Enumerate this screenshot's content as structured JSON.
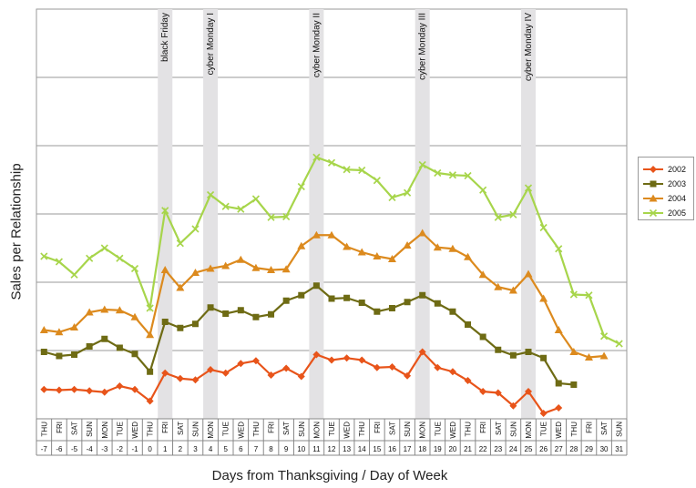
{
  "chart_data": {
    "type": "line",
    "title": "",
    "xlabel": "Days from Thanksgiving / Day of Week",
    "ylabel": "Sales per Relationship",
    "grid": true,
    "legend_position": "right",
    "x_days": [
      -7,
      -6,
      -5,
      -4,
      -3,
      -2,
      -1,
      0,
      1,
      2,
      3,
      4,
      5,
      6,
      7,
      8,
      9,
      10,
      11,
      12,
      13,
      14,
      15,
      16,
      17,
      18,
      19,
      20,
      21,
      22,
      23,
      24,
      25,
      26,
      27,
      28,
      29,
      30,
      31
    ],
    "x_day_labels": [
      "-7",
      "-6",
      "-5",
      "-4",
      "-3",
      "-2",
      "-1",
      "0",
      "1",
      "2",
      "3",
      "4",
      "5",
      "6",
      "7",
      "8",
      "9",
      "10",
      "11",
      "12",
      "13",
      "14",
      "15",
      "16",
      "17",
      "18",
      "19",
      "20",
      "21",
      "22",
      "23",
      "24",
      "25",
      "26",
      "27",
      "28",
      "29",
      "30",
      "31"
    ],
    "x_weekday_labels": [
      "THU",
      "FRI",
      "SAT",
      "SUN",
      "MON",
      "TUE",
      "WED",
      "THU",
      "FRI",
      "SAT",
      "SUN",
      "MON",
      "TUE",
      "WED",
      "THU",
      "FRI",
      "SAT",
      "SUN",
      "MON",
      "TUE",
      "WED",
      "THU",
      "FRI",
      "SAT",
      "SUN",
      "MON",
      "TUE",
      "WED",
      "THU",
      "FRI",
      "SAT",
      "SUN",
      "MON",
      "TUE",
      "WED",
      "THU",
      "FRI",
      "SAT",
      "SUN"
    ],
    "y_gridlines": 6,
    "ylim": [
      0,
      6
    ],
    "highlights": [
      {
        "day": 1,
        "label": "black Friday"
      },
      {
        "day": 4,
        "label": "cyber Monday I"
      },
      {
        "day": 11,
        "label": "cyber Monday II"
      },
      {
        "day": 18,
        "label": "cyber Monday III"
      },
      {
        "day": 25,
        "label": "cyber Monday IV"
      }
    ],
    "series": [
      {
        "name": "2002",
        "color": "#e8541a",
        "marker": "diamond",
        "start": -7,
        "values": [
          0.43,
          0.42,
          0.43,
          0.41,
          0.39,
          0.48,
          0.43,
          0.26,
          0.67,
          0.59,
          0.57,
          0.72,
          0.67,
          0.81,
          0.85,
          0.64,
          0.74,
          0.62,
          0.94,
          0.86,
          0.89,
          0.86,
          0.75,
          0.76,
          0.63,
          0.98,
          0.75,
          0.69,
          0.56,
          0.4,
          0.38,
          0.19,
          0.4,
          0.08,
          0.16
        ]
      },
      {
        "name": "2003",
        "color": "#6e6b14",
        "marker": "square",
        "start": -7,
        "values": [
          0.98,
          0.92,
          0.94,
          1.06,
          1.17,
          1.04,
          0.95,
          0.69,
          1.42,
          1.33,
          1.39,
          1.63,
          1.54,
          1.59,
          1.49,
          1.53,
          1.73,
          1.81,
          1.95,
          1.76,
          1.77,
          1.7,
          1.57,
          1.62,
          1.71,
          1.81,
          1.69,
          1.57,
          1.38,
          1.2,
          1.01,
          0.93,
          0.98,
          0.89,
          0.52,
          0.5
        ]
      },
      {
        "name": "2004",
        "color": "#dc8a1e",
        "marker": "triangle",
        "start": -7,
        "values": [
          1.3,
          1.27,
          1.34,
          1.56,
          1.6,
          1.59,
          1.49,
          1.23,
          2.18,
          1.92,
          2.14,
          2.2,
          2.24,
          2.33,
          2.21,
          2.18,
          2.19,
          2.53,
          2.69,
          2.69,
          2.52,
          2.44,
          2.38,
          2.34,
          2.54,
          2.72,
          2.51,
          2.49,
          2.37,
          2.11,
          1.93,
          1.88,
          2.12,
          1.76,
          1.3,
          0.98,
          0.9,
          0.92
        ]
      },
      {
        "name": "2005",
        "color": "#a7d54b",
        "marker": "x",
        "start": -7,
        "values": [
          2.38,
          2.3,
          2.11,
          2.35,
          2.5,
          2.35,
          2.2,
          1.62,
          3.05,
          2.57,
          2.78,
          3.28,
          3.11,
          3.07,
          3.22,
          2.95,
          2.96,
          3.4,
          3.83,
          3.75,
          3.65,
          3.64,
          3.49,
          3.24,
          3.31,
          3.72,
          3.6,
          3.57,
          3.56,
          3.35,
          2.95,
          2.99,
          3.38,
          2.8,
          2.49,
          1.82,
          1.81,
          1.21,
          1.1
        ]
      }
    ]
  }
}
